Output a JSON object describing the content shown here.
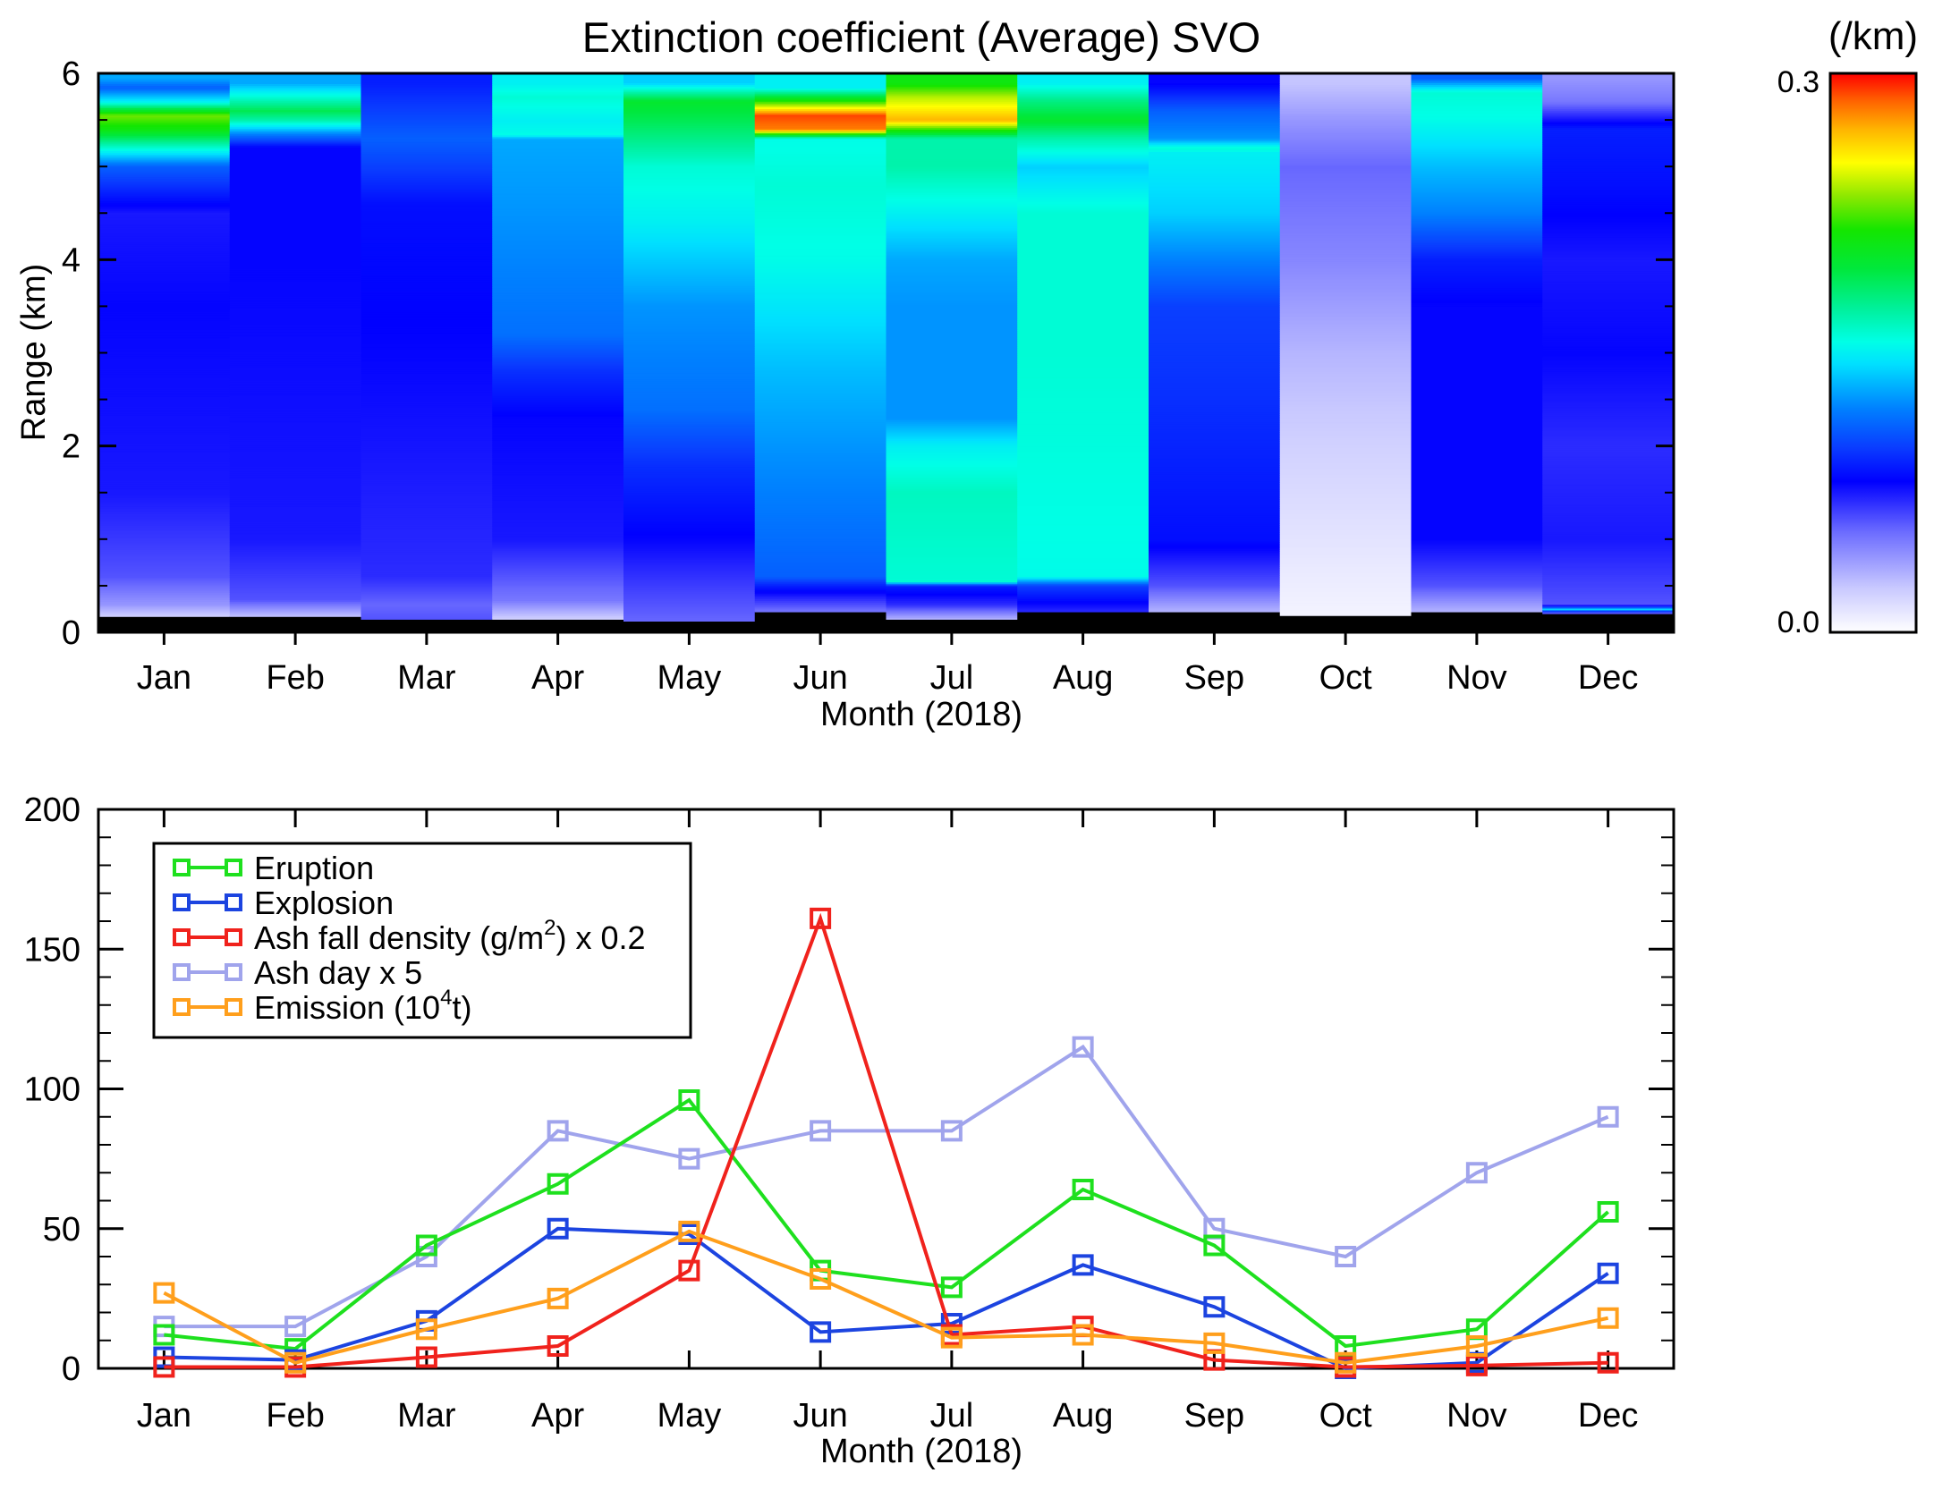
{
  "chart_data": [
    {
      "type": "heatmap",
      "title": "Extinction coefficient (Average) SVO",
      "xlabel": "Month (2018)",
      "ylabel": "Range (km)",
      "ylim": [
        0,
        6
      ],
      "yticks": [
        0,
        2,
        4,
        6
      ],
      "categories": [
        "Jan",
        "Feb",
        "Mar",
        "Apr",
        "May",
        "Jun",
        "Jul",
        "Aug",
        "Sep",
        "Oct",
        "Nov",
        "Dec"
      ],
      "colorbar": {
        "unit": "(/km)",
        "min": 0.0,
        "max": 0.3,
        "min_label": "0.0",
        "max_label": "0.3"
      },
      "profiles": [
        {
          "month": "Jan",
          "floor": 0.17,
          "profile": [
            [
              0.17,
              0.02
            ],
            [
              0.3,
              0.04
            ],
            [
              0.6,
              0.06
            ],
            [
              1.5,
              0.075
            ],
            [
              3.5,
              0.08
            ],
            [
              4.5,
              0.075
            ],
            [
              5.0,
              0.11
            ],
            [
              5.2,
              0.16
            ],
            [
              5.4,
              0.21
            ],
            [
              5.55,
              0.23
            ],
            [
              5.7,
              0.15
            ],
            [
              5.85,
              0.11
            ],
            [
              5.95,
              0.13
            ]
          ]
        },
        {
          "month": "Feb",
          "floor": 0.17,
          "profile": [
            [
              0.17,
              0.025
            ],
            [
              0.35,
              0.06
            ],
            [
              1.0,
              0.075
            ],
            [
              4.0,
              0.08
            ],
            [
              5.2,
              0.08
            ],
            [
              5.35,
              0.12
            ],
            [
              5.5,
              0.17
            ],
            [
              5.6,
              0.19
            ],
            [
              5.75,
              0.16
            ],
            [
              5.9,
              0.13
            ]
          ]
        },
        {
          "month": "Mar",
          "floor": 0.14,
          "profile": [
            [
              0.14,
              0.06
            ],
            [
              0.3,
              0.055
            ],
            [
              0.6,
              0.07
            ],
            [
              3.0,
              0.08
            ],
            [
              4.6,
              0.085
            ],
            [
              5.0,
              0.1
            ],
            [
              5.3,
              0.11
            ],
            [
              5.6,
              0.1
            ],
            [
              5.9,
              0.09
            ]
          ]
        },
        {
          "month": "Apr",
          "floor": 0.14,
          "profile": [
            [
              0.14,
              0.02
            ],
            [
              0.35,
              0.05
            ],
            [
              1.0,
              0.075
            ],
            [
              2.3,
              0.08
            ],
            [
              2.8,
              0.095
            ],
            [
              3.2,
              0.115
            ],
            [
              4.5,
              0.125
            ],
            [
              5.3,
              0.13
            ],
            [
              5.34,
              0.155
            ],
            [
              5.5,
              0.15
            ],
            [
              5.75,
              0.16
            ],
            [
              5.9,
              0.15
            ]
          ]
        },
        {
          "month": "May",
          "floor": 0.12,
          "profile": [
            [
              0.12,
              0.055
            ],
            [
              0.3,
              0.06
            ],
            [
              1.0,
              0.08
            ],
            [
              1.8,
              0.095
            ],
            [
              2.4,
              0.115
            ],
            [
              3.5,
              0.125
            ],
            [
              4.4,
              0.15
            ],
            [
              5.0,
              0.16
            ],
            [
              5.5,
              0.19
            ],
            [
              5.7,
              0.2
            ],
            [
              5.9,
              0.14
            ]
          ]
        },
        {
          "month": "Jun",
          "floor": 0.22,
          "profile": [
            [
              0.22,
              0.05
            ],
            [
              0.5,
              0.09
            ],
            [
              0.6,
              0.11
            ],
            [
              2.0,
              0.125
            ],
            [
              2.8,
              0.135
            ],
            [
              4.0,
              0.155
            ],
            [
              4.8,
              0.16
            ],
            [
              5.3,
              0.155
            ],
            [
              5.4,
              0.28
            ],
            [
              5.55,
              0.29
            ],
            [
              5.7,
              0.22
            ],
            [
              5.85,
              0.15
            ]
          ]
        },
        {
          "month": "Jul",
          "floor": 0.14,
          "profile": [
            [
              0.14,
              0.03
            ],
            [
              0.3,
              0.07
            ],
            [
              0.5,
              0.09
            ],
            [
              0.55,
              0.16
            ],
            [
              1.5,
              0.165
            ],
            [
              2.0,
              0.15
            ],
            [
              2.3,
              0.125
            ],
            [
              3.5,
              0.125
            ],
            [
              4.0,
              0.13
            ],
            [
              5.0,
              0.17
            ],
            [
              5.3,
              0.17
            ],
            [
              5.5,
              0.27
            ],
            [
              5.75,
              0.24
            ],
            [
              5.9,
              0.21
            ]
          ]
        },
        {
          "month": "Aug",
          "floor": 0.22,
          "profile": [
            [
              0.22,
              0.07
            ],
            [
              0.5,
              0.1
            ],
            [
              0.6,
              0.155
            ],
            [
              3.0,
              0.16
            ],
            [
              4.5,
              0.16
            ],
            [
              5.0,
              0.14
            ],
            [
              5.3,
              0.17
            ],
            [
              5.5,
              0.2
            ],
            [
              5.7,
              0.18
            ],
            [
              5.9,
              0.15
            ]
          ]
        },
        {
          "month": "Sep",
          "floor": 0.22,
          "profile": [
            [
              0.22,
              0.03
            ],
            [
              0.5,
              0.06
            ],
            [
              1.0,
              0.085
            ],
            [
              2.5,
              0.095
            ],
            [
              3.5,
              0.1
            ],
            [
              4.0,
              0.12
            ],
            [
              4.5,
              0.14
            ],
            [
              5.15,
              0.15
            ],
            [
              5.2,
              0.16
            ],
            [
              5.3,
              0.125
            ],
            [
              5.6,
              0.11
            ],
            [
              5.9,
              0.08
            ]
          ]
        },
        {
          "month": "Oct",
          "floor": 0.18,
          "profile": [
            [
              0.18,
              0.005
            ],
            [
              1.0,
              0.012
            ],
            [
              2.0,
              0.02
            ],
            [
              3.0,
              0.03
            ],
            [
              4.0,
              0.045
            ],
            [
              5.0,
              0.055
            ],
            [
              5.5,
              0.04
            ],
            [
              5.9,
              0.025
            ]
          ]
        },
        {
          "month": "Nov",
          "floor": 0.22,
          "profile": [
            [
              0.22,
              0.03
            ],
            [
              0.5,
              0.06
            ],
            [
              1.0,
              0.08
            ],
            [
              3.5,
              0.08
            ],
            [
              4.0,
              0.09
            ],
            [
              4.5,
              0.12
            ],
            [
              5.0,
              0.135
            ],
            [
              5.5,
              0.155
            ],
            [
              5.8,
              0.16
            ],
            [
              5.95,
              0.11
            ]
          ]
        },
        {
          "month": "Dec",
          "floor": 0.2,
          "profile": [
            [
              0.2,
              0.04
            ],
            [
              0.25,
              0.14
            ],
            [
              0.3,
              0.06
            ],
            [
              1.0,
              0.075
            ],
            [
              2.0,
              0.07
            ],
            [
              3.0,
              0.08
            ],
            [
              4.0,
              0.075
            ],
            [
              4.8,
              0.085
            ],
            [
              5.4,
              0.09
            ],
            [
              5.7,
              0.05
            ],
            [
              5.95,
              0.04
            ]
          ]
        }
      ]
    },
    {
      "type": "line",
      "xlabel": "Month (2018)",
      "ylabel": "",
      "ylim": [
        0,
        200
      ],
      "yticks": [
        0,
        50,
        100,
        150,
        200
      ],
      "categories": [
        "Jan",
        "Feb",
        "Mar",
        "Apr",
        "May",
        "Jun",
        "Jul",
        "Aug",
        "Sep",
        "Oct",
        "Nov",
        "Dec"
      ],
      "legend_position": "top-left",
      "series": [
        {
          "name": "Eruption",
          "color": "#1ee01e",
          "values": [
            12,
            7,
            44,
            66,
            96,
            35,
            29,
            64,
            44,
            8,
            14,
            56
          ]
        },
        {
          "name": "Explosion",
          "color": "#1c44e0",
          "values": [
            4,
            3,
            17,
            50,
            48,
            13,
            16,
            37,
            22,
            0,
            2,
            34
          ]
        },
        {
          "name": "Ash fall density (g/m²) x 0.2",
          "color": "#f0221c",
          "values": [
            0.5,
            0.5,
            4,
            8,
            35,
            161,
            12,
            15,
            3,
            0.5,
            1,
            2
          ]
        },
        {
          "name": "Ash day x 5",
          "color": "#a0a4ec",
          "values": [
            15,
            15,
            40,
            85,
            75,
            85,
            85,
            115,
            50,
            40,
            70,
            90
          ]
        },
        {
          "name": "Emission (10⁴t)",
          "color": "#ff9f1c",
          "values": [
            27,
            2,
            14,
            25,
            49,
            32,
            11,
            12,
            9,
            2,
            8,
            18
          ]
        }
      ],
      "legend": {
        "eruption": "Eruption",
        "explosion": "Explosion",
        "ash_fall_prefix": "Ash fall density (g/m",
        "ash_fall_sup": "2",
        "ash_fall_suffix": ") x 0.2",
        "ash_day": "Ash day x 5",
        "emission_prefix": "Emission (10",
        "emission_sup": "4",
        "emission_suffix": "t)"
      }
    }
  ]
}
